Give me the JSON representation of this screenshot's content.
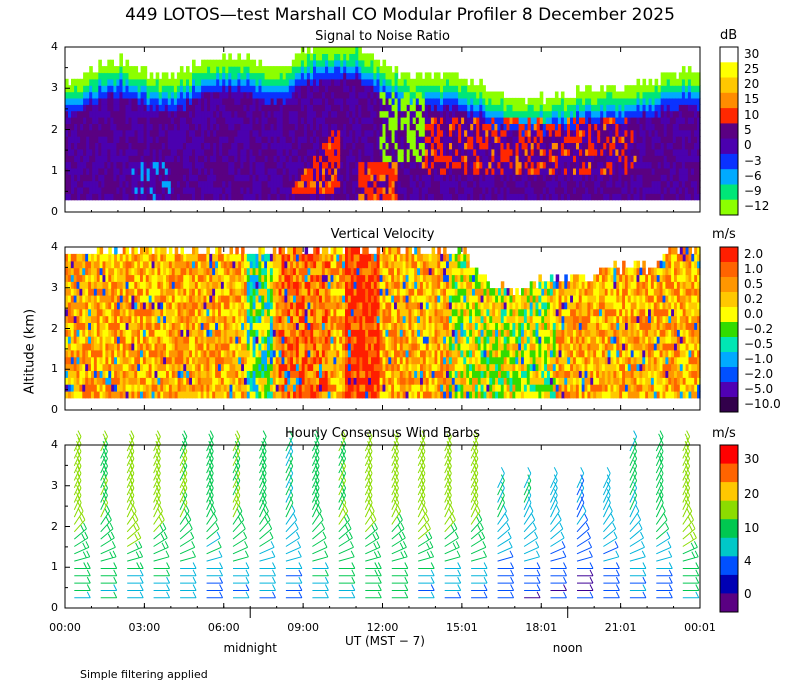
{
  "title": "449 LOTOS—test Marshall CO Modular Profiler  8 December 2025",
  "ylabel": "Altitude (km)",
  "xlabel": "UT  (MST − 7)",
  "footnote": "Simple filtering applied",
  "x_ticks": [
    "00:00",
    "03:00",
    "06:00",
    "09:00",
    "12:00",
    "15:01",
    "18:01",
    "21:01",
    "00:01"
  ],
  "x_tick_hours": [
    0,
    3,
    6,
    9,
    12,
    15,
    18,
    21,
    24
  ],
  "local_markers": [
    {
      "label": "midnight",
      "hour": 7
    },
    {
      "label": "noon",
      "hour": 19
    }
  ],
  "chart_data": [
    {
      "type": "heatmap",
      "title": "Signal to Noise Ratio",
      "unit": "dB",
      "ylim": [
        0,
        4
      ],
      "y_ticks": [
        "0",
        "1",
        "2",
        "3",
        "4"
      ],
      "xlim_hours": [
        0,
        24
      ],
      "colorbar_labels": [
        "30",
        "25",
        "20",
        "15",
        "10",
        "5",
        "0",
        "−3",
        "−6",
        "−9",
        "−12"
      ],
      "colorbar_colors": [
        "#ffffff",
        "#ffff00",
        "#ffc800",
        "#ff8c00",
        "#ff2800",
        "#5a0082",
        "#4b00af",
        "#0a32ff",
        "#00aaff",
        "#00e678",
        "#8cff00"
      ],
      "top_altitude_km": [
        3.1,
        3.4,
        3.6,
        3.3,
        3.2,
        3.5,
        3.7,
        3.6,
        3.4,
        3.8,
        4.0,
        4.0,
        3.5,
        3.2,
        3.3,
        3.2,
        2.9,
        2.7,
        2.7,
        2.8,
        2.9,
        3.0,
        3.1,
        3.3
      ],
      "features": "low-level SNR 0–5 dB below 2.5 km; enhanced 10–15 dB layers near 08–10 UT (0.5–1.8 km) and 13–21 UT (1–2.3 km); minimum altitude 0.3 km"
    },
    {
      "type": "heatmap",
      "title": "Vertical Velocity",
      "unit": "m/s",
      "ylim": [
        0,
        4
      ],
      "y_ticks": [
        "0",
        "1",
        "2",
        "3",
        "4"
      ],
      "xlim_hours": [
        0,
        24
      ],
      "colorbar_labels": [
        "2.0",
        "1.0",
        "0.5",
        "0.2",
        "0.0",
        "−0.2",
        "−0.5",
        "−1.0",
        "−2.0",
        "−5.0",
        "−10.0"
      ],
      "colorbar_colors": [
        "#ff1e00",
        "#ff6400",
        "#ff9600",
        "#ffc800",
        "#ffff00",
        "#32dc00",
        "#00e6b4",
        "#00aaff",
        "#0050ff",
        "#5000b4",
        "#32004b"
      ],
      "top_altitude_km": [
        4.0,
        4.0,
        4.0,
        4.0,
        4.0,
        4.0,
        4.0,
        4.0,
        4.0,
        4.0,
        4.0,
        4.0,
        4.0,
        4.0,
        4.0,
        4.0,
        3.1,
        3.0,
        3.3,
        3.3,
        3.4,
        3.6,
        3.6,
        4.0
      ],
      "features": "mostly 0.2–1.0 m/s; strong updrafts near 11 UT; downdraft bands near 7 UT and 14–18 UT"
    },
    {
      "type": "wind_barbs",
      "title": "Hourly Consensus Wind Barbs",
      "unit": "m/s",
      "ylim": [
        0,
        4
      ],
      "y_ticks": [
        "0",
        "1",
        "2",
        "3",
        "4"
      ],
      "xlim_hours": [
        0,
        24
      ],
      "colorbar_labels": [
        "30",
        "20",
        "10",
        "4",
        "0"
      ],
      "colorbar_colors": [
        "#ff0000",
        "#ff6400",
        "#ffc800",
        "#8cdc00",
        "#00c850",
        "#00c8c8",
        "#0050ff",
        "#0000b4",
        "#5a0082"
      ],
      "speed_ms_by_hour": [
        10,
        9,
        11,
        10,
        9,
        8,
        9,
        8,
        6,
        8,
        9,
        10,
        10,
        11,
        10,
        10,
        6,
        6,
        5,
        4,
        5,
        6,
        7,
        11
      ],
      "speed_ms_by_hour_near_surface": [
        6,
        5,
        4,
        4,
        3,
        3,
        3,
        3,
        3,
        4,
        5,
        6,
        6,
        3,
        3,
        2,
        2,
        2,
        2,
        2,
        3,
        3,
        3,
        4
      ]
    }
  ]
}
